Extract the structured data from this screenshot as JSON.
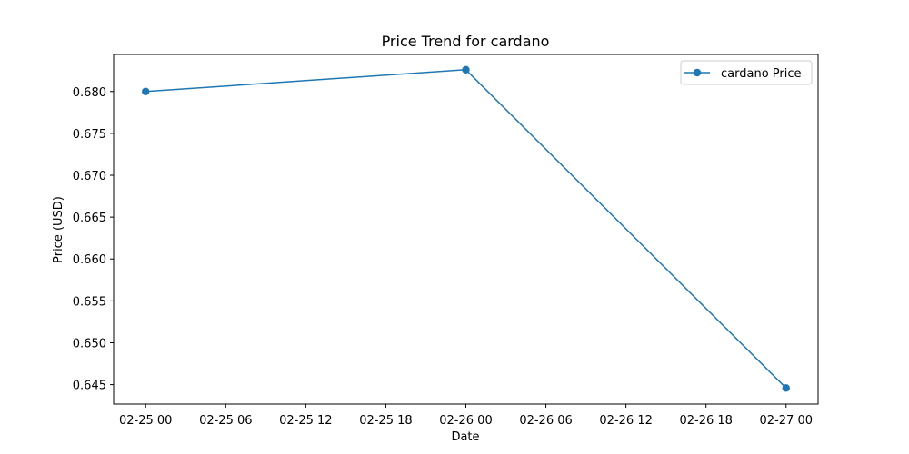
{
  "chart_data": {
    "type": "line",
    "title": "Price Trend for cardano",
    "xlabel": "Date",
    "ylabel": "Price (USD)",
    "x_tick_labels": [
      "02-25 00",
      "02-25 06",
      "02-25 12",
      "02-25 18",
      "02-26 00",
      "02-26 06",
      "02-26 12",
      "02-26 18",
      "02-27 00"
    ],
    "x_ticks": [
      "2025-02-25T00:00",
      "2025-02-25T06:00",
      "2025-02-25T12:00",
      "2025-02-25T18:00",
      "2025-02-26T00:00",
      "2025-02-26T06:00",
      "2025-02-26T12:00",
      "2025-02-26T18:00",
      "2025-02-27T00:00"
    ],
    "y_tick_labels": [
      "0.645",
      "0.650",
      "0.655",
      "0.660",
      "0.665",
      "0.670",
      "0.675",
      "0.680"
    ],
    "y_ticks": [
      0.645,
      0.65,
      0.655,
      0.66,
      0.665,
      0.67,
      0.675,
      0.68
    ],
    "xlim": [
      "2025-02-24T21:36",
      "2025-02-27T02:24"
    ],
    "ylim": [
      0.64268,
      0.68442
    ],
    "grid": false,
    "legend_position": "top-right",
    "series": [
      {
        "name": "cardano Price",
        "color": "#1f77b4",
        "marker": "circle",
        "points": [
          {
            "x": "2025-02-25T00:00",
            "y": 0.68
          },
          {
            "x": "2025-02-26T00:00",
            "y": 0.6826
          },
          {
            "x": "2025-02-27T00:00",
            "y": 0.6446
          }
        ]
      }
    ]
  }
}
